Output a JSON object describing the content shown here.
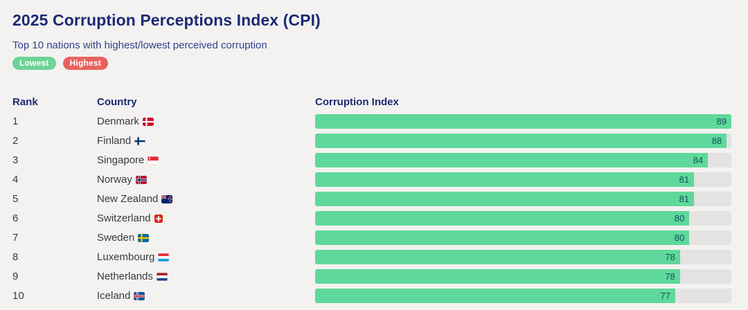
{
  "header": {
    "title": "2025 Corruption Perceptions Index (CPI)",
    "subtitle": "Top 10 nations with highest/lowest perceived corruption"
  },
  "legend": {
    "lowest": {
      "label": "Lowest",
      "color": "#6bd496"
    },
    "highest": {
      "label": "Highest",
      "color": "#e7625e"
    }
  },
  "table": {
    "headers": {
      "rank": "Rank",
      "country": "Country",
      "index": "Corruption Index"
    }
  },
  "rows": [
    {
      "rank": "1",
      "country": "Denmark",
      "flag": "dk",
      "value": 89
    },
    {
      "rank": "2",
      "country": "Finland",
      "flag": "fi",
      "value": 88
    },
    {
      "rank": "3",
      "country": "Singapore",
      "flag": "sg",
      "value": 84
    },
    {
      "rank": "4",
      "country": "Norway",
      "flag": "no",
      "value": 81
    },
    {
      "rank": "5",
      "country": "New Zealand",
      "flag": "nz",
      "value": 81
    },
    {
      "rank": "6",
      "country": "Switzerland",
      "flag": "ch",
      "value": 80
    },
    {
      "rank": "7",
      "country": "Sweden",
      "flag": "se",
      "value": 80
    },
    {
      "rank": "8",
      "country": "Luxembourg",
      "flag": "lu",
      "value": 78
    },
    {
      "rank": "9",
      "country": "Netherlands",
      "flag": "nl",
      "value": 78
    },
    {
      "rank": "10",
      "country": "Iceland",
      "flag": "is",
      "value": 77
    }
  ],
  "chart_data": {
    "type": "bar",
    "orientation": "horizontal",
    "title": "2025 Corruption Perceptions Index (CPI)",
    "subtitle": "Top 10 nations with highest/lowest perceived corruption",
    "categories": [
      "Denmark",
      "Finland",
      "Singapore",
      "Norway",
      "New Zealand",
      "Switzerland",
      "Sweden",
      "Luxembourg",
      "Netherlands",
      "Iceland"
    ],
    "values": [
      89,
      88,
      84,
      81,
      81,
      80,
      80,
      78,
      78,
      77
    ],
    "value_axis_label": "Corruption Index",
    "xlim": [
      0,
      89
    ],
    "grid": false,
    "legend_entries": [
      "Lowest",
      "Highest"
    ],
    "legend_position": "top-left",
    "bar_color": "#5fd89b",
    "track_color": "#e4e3e1"
  },
  "colors": {
    "background": "#f3f2f0",
    "title": "#1c2a74",
    "subtitle": "#31418e",
    "bar": "#5fd89b",
    "track": "#e4e3e1",
    "value_text": "#144e5c"
  }
}
